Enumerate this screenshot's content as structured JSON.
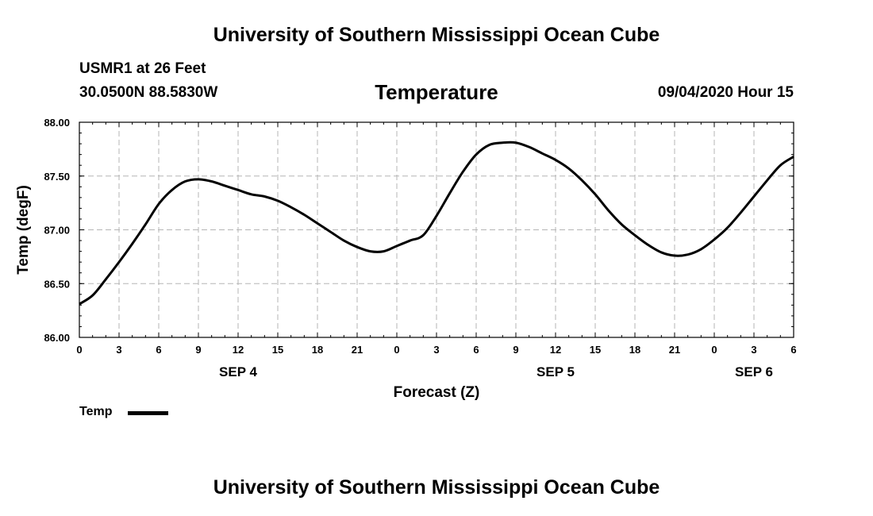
{
  "header": {
    "title": "University of Southern Mississippi Ocean Cube",
    "station": "USMR1 at 26 Feet",
    "coordinates": "30.0500N 88.5830W",
    "timestamp": "09/04/2020 Hour 15"
  },
  "footer": {
    "title": "University of Southern Mississippi Ocean Cube"
  },
  "legend": {
    "label": "Temp"
  },
  "chart_data": {
    "type": "line",
    "title": "Temperature",
    "xlabel": "Forecast (Z)",
    "ylabel": "Temp (degF)",
    "xlim": [
      0,
      54
    ],
    "ylim": [
      86.0,
      88.0
    ],
    "grid": true,
    "legend_position": "bottom-left",
    "x_ticks": [
      0,
      3,
      6,
      9,
      12,
      15,
      18,
      21,
      24,
      27,
      30,
      33,
      36,
      39,
      42,
      45,
      48,
      51,
      54
    ],
    "x_tick_labels": [
      "0",
      "3",
      "6",
      "9",
      "12",
      "15",
      "18",
      "21",
      "0",
      "3",
      "6",
      "9",
      "12",
      "15",
      "18",
      "21",
      "0",
      "3",
      "6"
    ],
    "y_ticks": [
      86.0,
      86.5,
      87.0,
      87.5,
      88.0
    ],
    "y_tick_labels": [
      "86.00",
      "86.50",
      "87.00",
      "87.50",
      "88.00"
    ],
    "date_labels": [
      {
        "x": 12,
        "label": "SEP 4"
      },
      {
        "x": 36,
        "label": "SEP 5"
      },
      {
        "x": 51,
        "label": "SEP 6"
      }
    ],
    "series": [
      {
        "name": "Temp",
        "color": "#000000",
        "x": [
          0,
          1,
          2,
          3,
          4,
          5,
          6,
          7,
          8,
          9,
          10,
          11,
          12,
          13,
          14,
          15,
          16,
          17,
          18,
          19,
          20,
          21,
          22,
          23,
          24,
          25,
          26,
          27,
          28,
          29,
          30,
          31,
          32,
          33,
          34,
          35,
          36,
          37,
          38,
          39,
          40,
          41,
          42,
          43,
          44,
          45,
          46,
          47,
          48,
          49,
          50,
          51,
          52,
          53,
          54
        ],
        "values": [
          86.31,
          86.39,
          86.54,
          86.7,
          86.87,
          87.05,
          87.24,
          87.37,
          87.45,
          87.47,
          87.45,
          87.41,
          87.37,
          87.33,
          87.31,
          87.27,
          87.21,
          87.14,
          87.06,
          86.98,
          86.9,
          86.84,
          86.8,
          86.8,
          86.85,
          86.9,
          86.95,
          87.13,
          87.34,
          87.54,
          87.7,
          87.79,
          87.81,
          87.81,
          87.77,
          87.71,
          87.65,
          87.57,
          87.46,
          87.33,
          87.18,
          87.05,
          86.95,
          86.86,
          86.79,
          86.76,
          86.77,
          86.82,
          86.91,
          87.02,
          87.16,
          87.31,
          87.46,
          87.6,
          87.68
        ]
      }
    ]
  }
}
